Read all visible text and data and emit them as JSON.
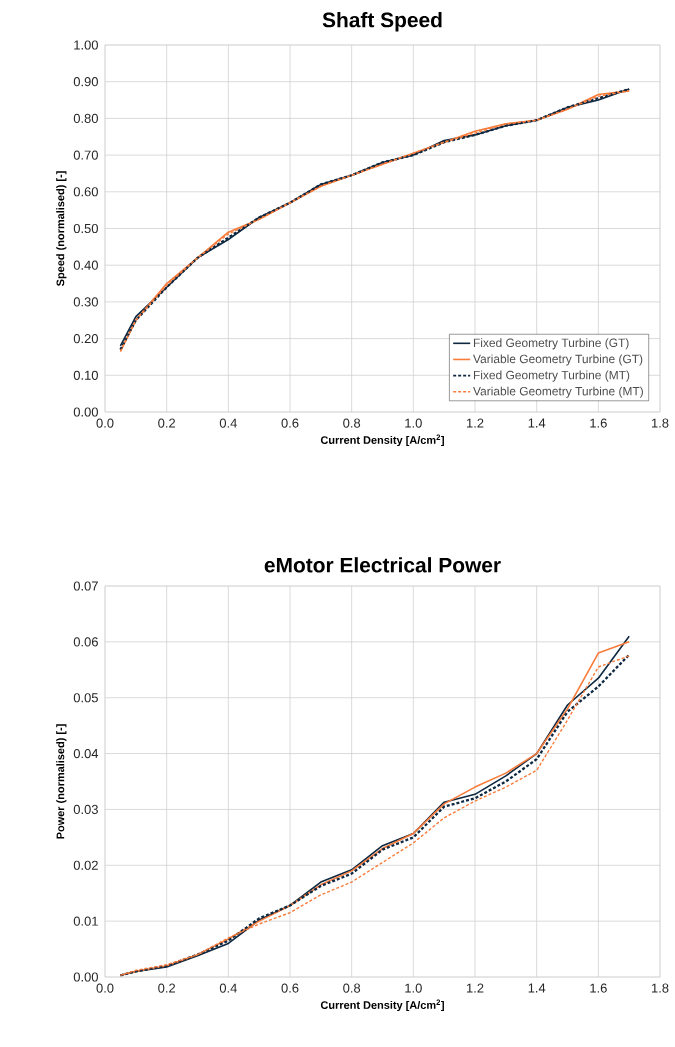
{
  "chart_data": [
    {
      "type": "line",
      "title": "Shaft Speed",
      "xlabel": "Current Density [A/cm$^{2}$]",
      "ylabel": "Speed (normalised) [-]",
      "x": [
        0.05,
        0.1,
        0.2,
        0.3,
        0.4,
        0.5,
        0.6,
        0.7,
        0.8,
        0.9,
        1.0,
        1.1,
        1.2,
        1.3,
        1.4,
        1.5,
        1.6,
        1.7
      ],
      "series": [
        {
          "name": "Fixed Geometry Turbine (GT)",
          "color": "#0e2841",
          "line_style": "solid",
          "values": [
            0.18,
            0.26,
            0.34,
            0.42,
            0.47,
            0.53,
            0.57,
            0.62,
            0.645,
            0.68,
            0.7,
            0.74,
            0.755,
            0.78,
            0.795,
            0.83,
            0.85,
            0.88
          ]
        },
        {
          "name": "Variable Geometry Turbine (GT)",
          "color": "#f97b3a",
          "line_style": "solid",
          "values": [
            0.165,
            0.25,
            0.35,
            0.42,
            0.49,
            0.525,
            0.57,
            0.615,
            0.645,
            0.675,
            0.705,
            0.735,
            0.765,
            0.785,
            0.795,
            0.825,
            0.865,
            0.875
          ]
        },
        {
          "name": "Fixed Geometry Turbine (MT)",
          "color": "#0e2841",
          "line_style": "dashed",
          "values": [
            0.17,
            0.25,
            0.34,
            0.42,
            0.475,
            0.53,
            0.57,
            0.62,
            0.645,
            0.68,
            0.7,
            0.735,
            0.755,
            0.78,
            0.795,
            0.83,
            0.855,
            0.88
          ]
        },
        {
          "name": "Variable Geometry Turbine (MT)",
          "color": "#f97b3a",
          "line_style": "dashed",
          "values": [
            0.165,
            0.25,
            0.345,
            0.42,
            0.485,
            0.525,
            0.57,
            0.615,
            0.645,
            0.675,
            0.705,
            0.735,
            0.76,
            0.785,
            0.795,
            0.825,
            0.86,
            0.875
          ]
        }
      ],
      "xlim": [
        0.0,
        1.8
      ],
      "xticks": [
        {
          "value": 0,
          "label": "0.0"
        },
        {
          "value": 0.2,
          "label": "0.2"
        },
        {
          "value": 0.4,
          "label": "0.4"
        },
        {
          "value": 0.6,
          "label": "0.6"
        },
        {
          "value": 0.8,
          "label": "0.8"
        },
        {
          "value": 1.0,
          "label": "1.0"
        },
        {
          "value": 1.2,
          "label": "1.2"
        },
        {
          "value": 1.4,
          "label": "1.4"
        },
        {
          "value": 1.6,
          "label": "1.6"
        },
        {
          "value": 1.8,
          "label": "1.8"
        }
      ],
      "ylim": [
        0.0,
        1.0
      ],
      "yticks": [
        {
          "value": 0,
          "label": "0.00"
        },
        {
          "value": 0.1,
          "label": "0.10"
        },
        {
          "value": 0.2,
          "label": "0.20"
        },
        {
          "value": 0.3,
          "label": "0.30"
        },
        {
          "value": 0.4,
          "label": "0.40"
        },
        {
          "value": 0.5,
          "label": "0.50"
        },
        {
          "value": 0.6,
          "label": "0.60"
        },
        {
          "value": 0.7,
          "label": "0.70"
        },
        {
          "value": 0.8,
          "label": "0.80"
        },
        {
          "value": 0.9,
          "label": "0.90"
        },
        {
          "value": 1.0,
          "label": "1.00"
        }
      ],
      "grid": true,
      "legend": "bottom right",
      "marker": "none"
    },
    {
      "type": "line",
      "title": "eMotor Electrical Power",
      "xlabel": "Current Density [A/cm$^{2}$]",
      "ylabel": "Power (normalised) [-]",
      "x": [
        0.05,
        0.1,
        0.2,
        0.3,
        0.4,
        0.5,
        0.6,
        0.7,
        0.8,
        0.9,
        1.0,
        1.1,
        1.2,
        1.3,
        1.4,
        1.5,
        1.6,
        1.7
      ],
      "series": [
        {
          "color": "#0e2841",
          "line_style": "solid",
          "values": [
            0.0003,
            0.001,
            0.0018,
            0.0038,
            0.006,
            0.0102,
            0.0128,
            0.017,
            0.0192,
            0.0235,
            0.0257,
            0.0313,
            0.0327,
            0.036,
            0.04,
            0.0487,
            0.0535,
            0.061
          ]
        },
        {
          "color": "#f97b3a",
          "line_style": "solid",
          "values": [
            0.0003,
            0.001,
            0.002,
            0.004,
            0.0068,
            0.01,
            0.0128,
            0.0165,
            0.019,
            0.023,
            0.0257,
            0.031,
            0.034,
            0.0365,
            0.04,
            0.048,
            0.058,
            0.06
          ]
        },
        {
          "color": "#0e2841",
          "line_style": "dashed",
          "values": [
            0.0003,
            0.001,
            0.002,
            0.004,
            0.0065,
            0.0105,
            0.0128,
            0.0163,
            0.0185,
            0.0228,
            0.025,
            0.0305,
            0.032,
            0.035,
            0.039,
            0.0475,
            0.052,
            0.0577
          ]
        },
        {
          "color": "#f97b3a",
          "line_style": "dashed",
          "values": [
            0.0003,
            0.0012,
            0.0022,
            0.004,
            0.007,
            0.0095,
            0.0115,
            0.0147,
            0.017,
            0.0205,
            0.024,
            0.0285,
            0.0315,
            0.034,
            0.037,
            0.046,
            0.0555,
            0.0575
          ]
        }
      ],
      "xlim": [
        0.0,
        1.8
      ],
      "xticks": [
        {
          "value": 0,
          "label": "0.0"
        },
        {
          "value": 0.2,
          "label": "0.2"
        },
        {
          "value": 0.4,
          "label": "0.4"
        },
        {
          "value": 0.6,
          "label": "0.6"
        },
        {
          "value": 0.8,
          "label": "0.8"
        },
        {
          "value": 1.0,
          "label": "1.0"
        },
        {
          "value": 1.2,
          "label": "1.2"
        },
        {
          "value": 1.4,
          "label": "1.4"
        },
        {
          "value": 1.6,
          "label": "1.6"
        },
        {
          "value": 1.8,
          "label": "1.8"
        }
      ],
      "ylim": [
        0.0,
        0.07
      ],
      "yticks": [
        {
          "value": 0,
          "label": "0.00"
        },
        {
          "value": 0.01,
          "label": "0.01"
        },
        {
          "value": 0.02,
          "label": "0.02"
        },
        {
          "value": 0.03,
          "label": "0.03"
        },
        {
          "value": 0.04,
          "label": "0.04"
        },
        {
          "value": 0.05,
          "label": "0.05"
        },
        {
          "value": 0.06,
          "label": "0.06"
        },
        {
          "value": 0.07,
          "label": "0.07"
        }
      ],
      "grid": true,
      "marker": "none"
    }
  ]
}
